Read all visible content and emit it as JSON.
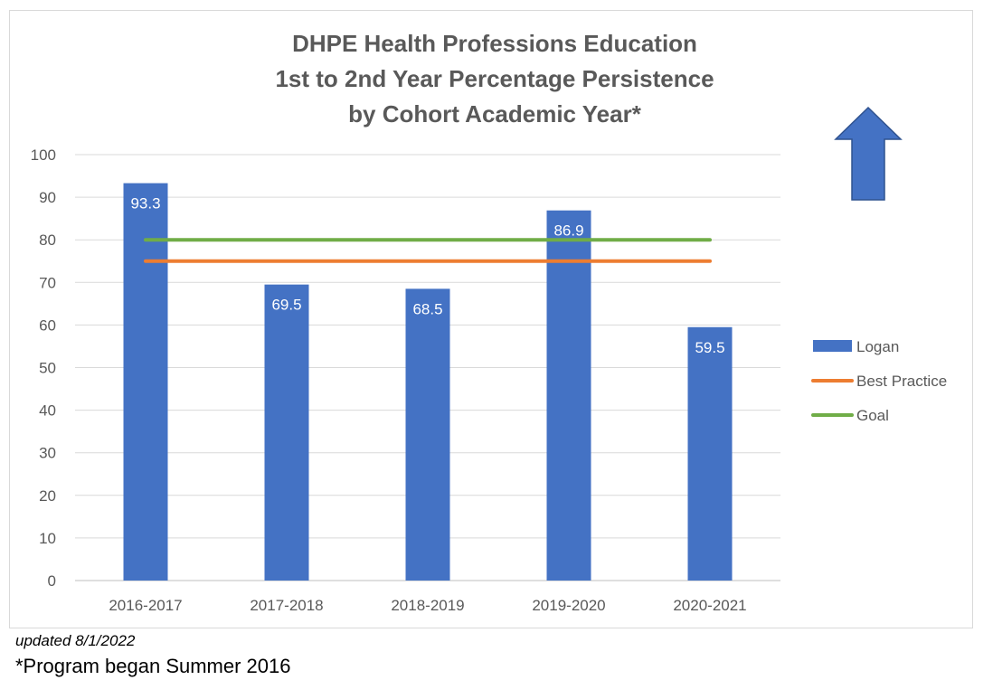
{
  "chart_data": {
    "type": "bar",
    "title": [
      "DHPE Health Professions Education",
      "1st to 2nd Year Percentage Persistence",
      "by Cohort Academic Year*"
    ],
    "categories": [
      "2016-2017",
      "2017-2018",
      "2018-2019",
      "2019-2020",
      "2020-2021"
    ],
    "series": [
      {
        "name": "Logan",
        "kind": "bar",
        "color": "#4472c4",
        "values": [
          93.3,
          69.5,
          68.5,
          86.9,
          59.5
        ],
        "labels": [
          "93.3",
          "69.5",
          "68.5",
          "86.9",
          "59.5"
        ]
      },
      {
        "name": "Best Practice",
        "kind": "line",
        "color": "#ed7d31",
        "values": [
          75,
          75,
          75,
          75,
          75
        ]
      },
      {
        "name": "Goal",
        "kind": "line",
        "color": "#70ad47",
        "values": [
          80,
          80,
          80,
          80,
          80
        ]
      }
    ],
    "ylim": [
      0,
      100
    ],
    "yticks": [
      0,
      10,
      20,
      30,
      40,
      50,
      60,
      70,
      80,
      90,
      100
    ],
    "grid": true,
    "legend_position": "right",
    "annotation": "up-arrow-icon",
    "annotation_color": "#4472c4"
  },
  "footnotes": {
    "updated": "updated 8/1/2022",
    "program": "*Program began Summer 2016"
  }
}
